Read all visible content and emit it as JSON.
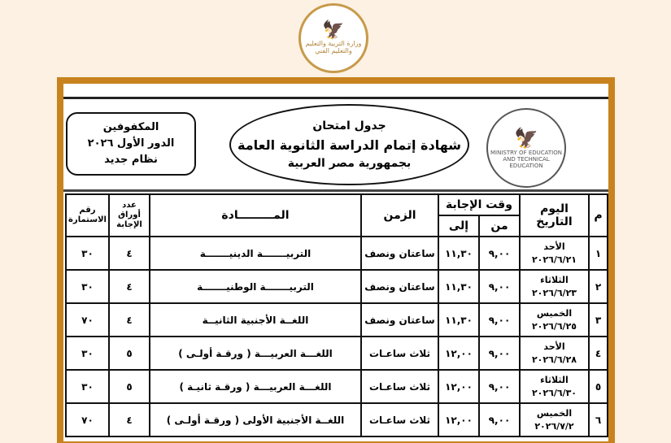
{
  "top_logo": {
    "text": "MINISTRY OF EDUCATION AND TECHNICAL EDUCATION",
    "arabic": "وزارة التربية والتعليم والتعليم الفني"
  },
  "header": {
    "box_lines": [
      "المكفوفين",
      "الدور الأول ٢٠٢٦",
      "نظام جديد"
    ],
    "title_lines": [
      "جدول امتحان",
      "شهادة إتمام الدراسة الثانوية العامة",
      "بجمهورية مصر العربية"
    ],
    "side_logo": {
      "text": "MINISTRY OF EDUCATION AND TECHNICAL EDUCATION"
    }
  },
  "table": {
    "headers": {
      "num": "م",
      "day_date": [
        "اليوم",
        "التاريخ"
      ],
      "answer_time": "وقت الإجابة",
      "from": "من",
      "to": "إلى",
      "duration": "الزمن",
      "subject": "المـــــــــادة",
      "sheets": [
        "عدد",
        "أوراق",
        "الإجابة"
      ],
      "form": [
        "رقم",
        "الاستمارة"
      ]
    },
    "rows": [
      {
        "num": "١",
        "day": "الأحد",
        "date": "٢٠٢٦/٦/٢١",
        "from": "٩,٠٠",
        "to": "١١,٣٠",
        "duration": "ساعتان ونصف",
        "subject": "التربيـــــــة الدينيـــــــة",
        "sheets": "٤",
        "form": "٣٠"
      },
      {
        "num": "٢",
        "day": "الثلاثاء",
        "date": "٢٠٢٦/٦/٢٣",
        "from": "٩,٠٠",
        "to": "١١,٣٠",
        "duration": "ساعتان ونصف",
        "subject": "التربيـــــــة الوطنيـــــــة",
        "sheets": "٤",
        "form": "٣٠"
      },
      {
        "num": "٣",
        "day": "الخميس",
        "date": "٢٠٢٦/٦/٢٥",
        "from": "٩,٠٠",
        "to": "١١,٣٠",
        "duration": "ساعتان ونصف",
        "subject": "اللغــة الأجنبية الثانيــة",
        "sheets": "٤",
        "form": "٧٠"
      },
      {
        "num": "٤",
        "day": "الأحد",
        "date": "٢٠٢٦/٦/٢٨",
        "from": "٩,٠٠",
        "to": "١٢,٠٠",
        "duration": "ثلاث ساعـات",
        "subject": "اللغـــة العربيـــة ( ورقـة أولـى )",
        "sheets": "٥",
        "form": "٣٠"
      },
      {
        "num": "٥",
        "day": "الثلاثاء",
        "date": "٢٠٢٦/٦/٣٠",
        "from": "٩,٠٠",
        "to": "١٢,٠٠",
        "duration": "ثلاث ساعـات",
        "subject": "اللغـــة العربيـــة ( ورقـة ثانيـة )",
        "sheets": "٥",
        "form": "٣٠"
      },
      {
        "num": "٦",
        "day": "الخميس",
        "date": "٢٠٢٦/٧/٢",
        "from": "٩,٠٠",
        "to": "١٢,٠٠",
        "duration": "ثلاث ساعـات",
        "subject": "اللغــة الأجنبية الأولى ( ورقـة أولـى )",
        "sheets": "٤",
        "form": "٧٠"
      }
    ]
  },
  "colors": {
    "background": "#fcf1e2",
    "frame": "#c8831e",
    "logo_gold": "#b0843a"
  }
}
